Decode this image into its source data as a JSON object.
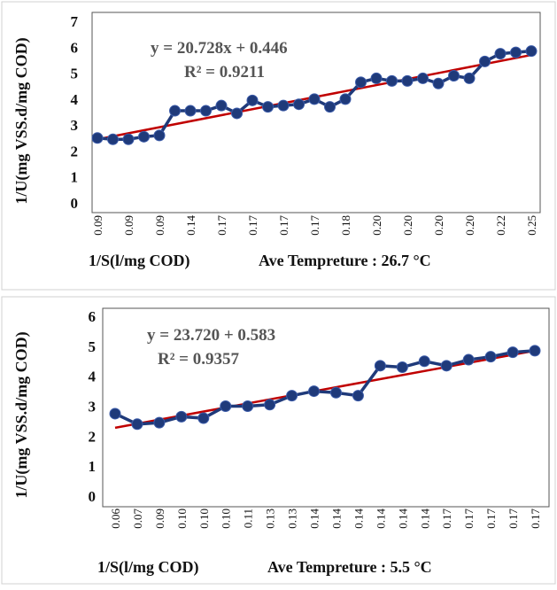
{
  "chart_data": [
    {
      "type": "line",
      "y_label": "1/U(mg VSS.d/mg COD)",
      "x_label": "1/S(l/mg COD)",
      "annotation": "Ave Tempreture : 26.7 °C",
      "equation": "y = 20.728x + 0.446",
      "r_squared": "R² = 0.9211",
      "categories": [
        "0.09",
        null,
        "0.09",
        null,
        "0.09",
        null,
        "0.14",
        null,
        "0.17",
        null,
        "0.17",
        null,
        "0.17",
        null,
        "0.17",
        null,
        "0.18",
        null,
        "0.20",
        null,
        "0.20",
        null,
        "0.20",
        null,
        "0.20",
        null,
        "0.22",
        null,
        "0.25"
      ],
      "series": [
        {
          "color": "#1f3a7a",
          "values": [
            2.5,
            2.45,
            2.45,
            2.55,
            2.6,
            3.55,
            3.55,
            3.55,
            3.75,
            3.45,
            3.95,
            3.7,
            3.75,
            3.8,
            4.0,
            3.7,
            4.0,
            4.65,
            4.8,
            4.7,
            4.7,
            4.8,
            4.6,
            4.9,
            4.8,
            5.45,
            5.75,
            5.8,
            5.85
          ]
        }
      ],
      "trend_line": {
        "color": "#c00000",
        "values": [
          2.45,
          5.7
        ]
      },
      "ylim": [
        0,
        7
      ],
      "yticks": [
        0,
        1,
        2,
        3,
        4,
        5,
        6,
        7
      ]
    },
    {
      "type": "line",
      "y_label": "1/U(mg VSS.d/mg COD)",
      "x_label": "1/S(l/mg COD)",
      "annotation": "Ave Tempreture : 5.5 °C",
      "equation": "y = 23.720 + 0.583",
      "r_squared": "R² = 0.9357",
      "categories": [
        "0.06",
        "0.07",
        "0.09",
        "0.10",
        "0.10",
        "0.10",
        "0.11",
        "0.13",
        "0.13",
        "0.14",
        "0.14",
        "0.14",
        "0.14",
        "0.14",
        "0.14",
        "0.17",
        "0.17",
        "0.17",
        "0.17",
        "0.17"
      ],
      "series": [
        {
          "color": "#1f3a7a",
          "values": [
            2.75,
            2.4,
            2.45,
            2.65,
            2.6,
            3.0,
            3.0,
            3.05,
            3.35,
            3.5,
            3.45,
            3.35,
            4.35,
            4.3,
            4.5,
            4.35,
            4.55,
            4.65,
            4.8,
            4.85
          ]
        }
      ],
      "trend_line": {
        "color": "#c00000",
        "values": [
          2.28,
          4.85
        ]
      },
      "ylim": [
        0,
        6
      ],
      "yticks": [
        0,
        1,
        2,
        3,
        4,
        5,
        6
      ]
    }
  ]
}
